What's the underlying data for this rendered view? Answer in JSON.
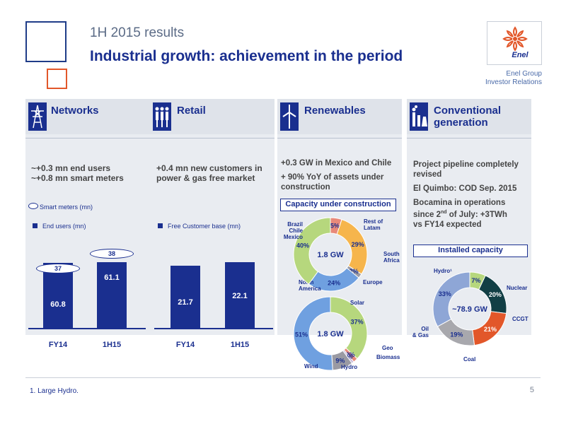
{
  "header": {
    "subtitle": "1H 2015 results",
    "title": "Industrial growth: achievement in the period",
    "logo_text": "Enel",
    "group_line1": "Enel Group",
    "group_line2": "Investor Relations"
  },
  "panels": {
    "networks": {
      "title": "Networks",
      "icon": "power-pylon-icon",
      "line1": "~+0.3 mn end users",
      "line2": "~+0.8 mn smart meters",
      "legend_bubble": "Smart meters (mn)",
      "legend_bar": "End users (mn)"
    },
    "retail": {
      "title": "Retail",
      "icon": "people-icon",
      "line1": "+0.4 mn new customers in",
      "line2": "power & gas free market",
      "legend_bar": "Free Customer base (mn)"
    },
    "renewables": {
      "title": "Renewables",
      "icon": "wind-turbine-icon",
      "line1": "+0.3 GW in Mexico and Chile",
      "line2": "+ 90% YoY of assets under",
      "line3": "construction",
      "box_title": "Capacity under construction"
    },
    "conventional": {
      "title_line1": "Conventional",
      "title_line2": "generation",
      "icon": "power-plant-icon",
      "line1": "Project pipeline completely",
      "line2": "revised",
      "line3": "El Quimbo: COD Sep. 2015",
      "line4a": "Bocamina in operations",
      "line4b_pre": "since 2",
      "line4b_sup": "nd",
      "line4b_post": " of July:  +3TWh",
      "line4c": "vs FY14 expected",
      "box_title": "Installed capacity"
    }
  },
  "chart_data": [
    {
      "type": "bar",
      "name": "networks",
      "categories": [
        "FY14",
        "1H15"
      ],
      "series": [
        {
          "name": "End users (mn)",
          "values": [
            60.8,
            61.1
          ]
        },
        {
          "name": "Smart meters (mn)",
          "values": [
            37,
            38
          ]
        }
      ]
    },
    {
      "type": "bar",
      "name": "retail",
      "categories": [
        "FY14",
        "1H15"
      ],
      "series": [
        {
          "name": "Free Customer base (mn)",
          "values": [
            21.7,
            22.1
          ]
        }
      ]
    },
    {
      "type": "pie",
      "name": "capacity-under-construction-region",
      "center_label": "1.8 GW",
      "slices": [
        {
          "label": "Rest of Latam",
          "value": 5,
          "value_label": "5%",
          "color": "#e8897a"
        },
        {
          "label": "South Africa",
          "value": 29,
          "value_label": "29%",
          "color": "#f6b54c"
        },
        {
          "label": "Europe",
          "value": 2,
          "value_label": "2%",
          "color": "#9a9aa3"
        },
        {
          "label": "North America",
          "value": 24,
          "value_label": "24%",
          "color": "#6fa0e0"
        },
        {
          "label": "Brazil Chile Mexico",
          "value": 40,
          "value_label": "40%",
          "color": "#b6d77d"
        }
      ]
    },
    {
      "type": "pie",
      "name": "capacity-under-construction-technology",
      "center_label": "1.8 GW",
      "slices": [
        {
          "label": "Solar",
          "value": 37,
          "value_label": "37%",
          "color": "#b6d77d"
        },
        {
          "label": "Geo",
          "value": 2,
          "value_label": "2%",
          "color": "#e8897a"
        },
        {
          "label": "Biomass",
          "value": 1,
          "value_label": "1%",
          "color": "#c7b9d9"
        },
        {
          "label": "Hydro",
          "value": 9,
          "value_label": "9%",
          "color": "#9a9aa3"
        },
        {
          "label": "Wind",
          "value": 51,
          "value_label": "51%",
          "color": "#6fa0e0"
        }
      ]
    },
    {
      "type": "pie",
      "name": "installed-capacity",
      "center_label": "~78.9 GW",
      "slices": [
        {
          "label": "Nuclear",
          "value": 7,
          "value_label": "7%",
          "color": "#b6d77d"
        },
        {
          "label": "CCGT",
          "value": 20,
          "value_label": "20%",
          "color": "#123f45"
        },
        {
          "label": "Coal",
          "value": 21,
          "value_label": "21%",
          "color": "#e2572a"
        },
        {
          "label": "Oil & Gas",
          "value": 19,
          "value_label": "19%",
          "color": "#a8a8ad"
        },
        {
          "label": "Hydro¹",
          "value": 33,
          "value_label": "33%",
          "color": "#8ea6d6"
        }
      ]
    }
  ],
  "footer": {
    "note": "1.    Large Hydro.",
    "page": "5"
  }
}
